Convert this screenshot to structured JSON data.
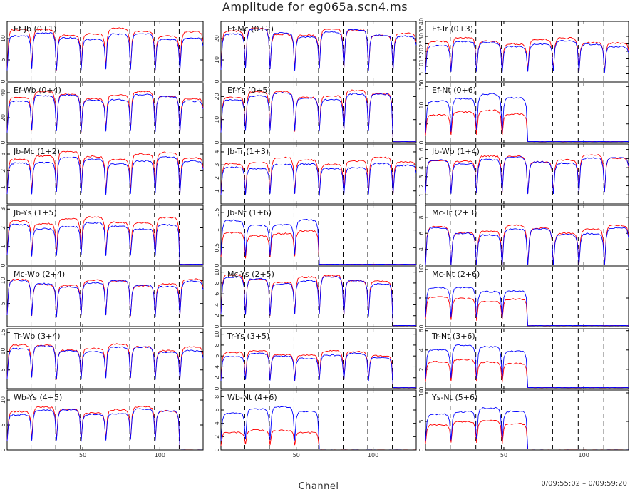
{
  "title": "Amplitude for eg065a.scn4.ms",
  "xlabel": "Channel",
  "time_range": "0/09:55:02 – 0/09:59:20",
  "colors": {
    "pol1": "#ff0000",
    "pol2": "#0000ff",
    "frame": "#000000",
    "separator": "#000000"
  },
  "chart_data": {
    "type": "line",
    "x_range": [
      1,
      128
    ],
    "x_ticks": [
      50,
      100
    ],
    "channel_separators": [
      16,
      32,
      48,
      64,
      80,
      96,
      112
    ],
    "series_names": [],
    "panels": [
      {
        "label": "Ef-Jb (0+1)",
        "ylim": [
          0,
          14
        ],
        "yticks": [
          0,
          5,
          10
        ],
        "red_level": 11.5,
        "blue_level": 10.5,
        "flag_from": null
      },
      {
        "label": "Ef-Mc (0+2)",
        "ylim": [
          0,
          28
        ],
        "yticks": [
          0,
          10,
          20
        ],
        "red_level": 23,
        "blue_level": 22.5,
        "flag_from": null
      },
      {
        "label": "Ef-Tr (0+3)",
        "ylim": [
          0,
          40
        ],
        "yticks": [
          0,
          5,
          10,
          15,
          20,
          25,
          30,
          35,
          40
        ],
        "red_level": 27,
        "blue_level": 25,
        "flag_from": null
      },
      {
        "label": "Ef-Wb (0+4)",
        "ylim": [
          0,
          48
        ],
        "yticks": [
          0,
          20,
          40
        ],
        "red_level": 38,
        "blue_level": 36,
        "flag_from": null
      },
      {
        "label": "Ef-Ys (0+5)",
        "ylim": [
          0,
          26
        ],
        "yticks": [
          0,
          10,
          20
        ],
        "red_level": 21,
        "blue_level": 20,
        "flag_from": 112
      },
      {
        "label": "Ef-Nt (0+6)",
        "ylim": [
          0,
          16
        ],
        "yticks": [
          0,
          5,
          10,
          15
        ],
        "red_level": 8,
        "blue_level": 12,
        "flag_from": 64
      },
      {
        "label": "Jb-Mc (1+2)",
        "ylim": [
          0,
          3.6
        ],
        "yticks": [
          1,
          2,
          3
        ],
        "red_level": 2.9,
        "blue_level": 2.6,
        "flag_from": null
      },
      {
        "label": "Jb-Tr (1+3)",
        "ylim": [
          0,
          4.6
        ],
        "yticks": [
          1,
          2,
          3,
          4
        ],
        "red_level": 3.3,
        "blue_level": 2.9,
        "flag_from": null
      },
      {
        "label": "Jb-Wb (1+4)",
        "ylim": [
          0,
          6.6
        ],
        "yticks": [
          1,
          2,
          3,
          4,
          5,
          6
        ],
        "red_level": 5,
        "blue_level": 4.8,
        "flag_from": null
      },
      {
        "label": "Jb-Ys (1+5)",
        "ylim": [
          0,
          3.2
        ],
        "yticks": [
          0,
          1,
          2,
          3
        ],
        "red_level": 2.4,
        "blue_level": 2.1,
        "flag_from": 112
      },
      {
        "label": "Jb-Nt (1+6)",
        "ylim": [
          0,
          1.7
        ],
        "yticks": [
          0,
          0.5,
          1,
          1.5
        ],
        "red_level": 0.9,
        "blue_level": 1.2,
        "flag_from": 64
      },
      {
        "label": "Mc-Tr (2+3)",
        "ylim": [
          2,
          9.5
        ],
        "yticks": [
          2,
          4,
          6,
          8
        ],
        "red_level": 6.5,
        "blue_level": 6.2,
        "flag_from": null
      },
      {
        "label": "Mc-Wb (2+4)",
        "ylim": [
          0,
          13
        ],
        "yticks": [
          5,
          10
        ],
        "red_level": 9.5,
        "blue_level": 9.3,
        "flag_from": null
      },
      {
        "label": "Mc-Ys (2+5)",
        "ylim": [
          0,
          11
        ],
        "yticks": [
          0,
          2,
          4,
          6,
          8,
          10
        ],
        "red_level": 8.8,
        "blue_level": 8.5,
        "flag_from": 112
      },
      {
        "label": "Mc-Nt (2+6)",
        "ylim": [
          0,
          10.5
        ],
        "yticks": [
          0,
          5,
          10
        ],
        "red_level": 4.8,
        "blue_level": 6.5,
        "flag_from": 64
      },
      {
        "label": "Tr-Wb (3+4)",
        "ylim": [
          0,
          16
        ],
        "yticks": [
          5,
          10,
          15
        ],
        "red_level": 11,
        "blue_level": 10.5,
        "flag_from": null
      },
      {
        "label": "Tr-Ys (3+5)",
        "ylim": [
          0,
          11
        ],
        "yticks": [
          0,
          2,
          4,
          6,
          8,
          10
        ],
        "red_level": 6.5,
        "blue_level": 6,
        "flag_from": 112
      },
      {
        "label": "Tr-Nt (3+6)",
        "ylim": [
          0,
          6.2
        ],
        "yticks": [
          0,
          2,
          4,
          6
        ],
        "red_level": 2.8,
        "blue_level": 4.2,
        "flag_from": 64
      },
      {
        "label": "Wb-Ys (4+5)",
        "ylim": [
          0,
          12
        ],
        "yticks": [
          0,
          5,
          10
        ],
        "red_level": 8,
        "blue_level": 7.6,
        "flag_from": 112
      },
      {
        "label": "Wb-Nt (4+6)",
        "ylim": [
          0,
          9
        ],
        "yticks": [
          0,
          2,
          4,
          6,
          8
        ],
        "red_level": 2.8,
        "blue_level": 6,
        "flag_from": 64
      },
      {
        "label": "Ys-Nt (5+6)",
        "ylim": [
          0,
          10.5
        ],
        "yticks": [
          0,
          5,
          10
        ],
        "red_level": 4.8,
        "blue_level": 6.8,
        "flag_from": 64
      }
    ]
  }
}
